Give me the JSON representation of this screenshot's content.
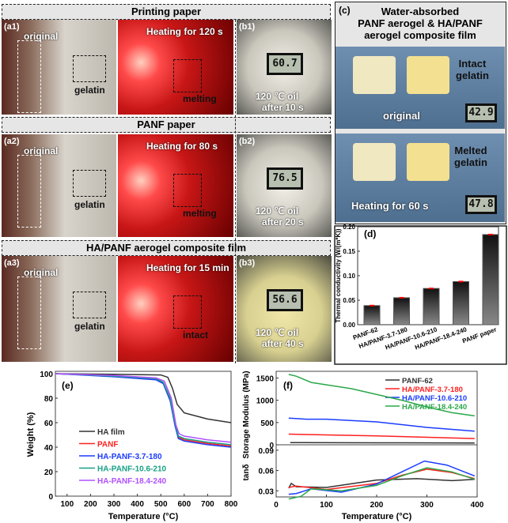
{
  "panels": {
    "row1": {
      "header": "Printing paper",
      "a_tag": "(a1)",
      "orig": "original",
      "gel": "gelatin",
      "heat": "Heating for 120 s",
      "melt": "melting",
      "b_tag": "(b1)",
      "meter": "60.7",
      "oil1": "120 ℃  oil",
      "oil2": "after 10 s"
    },
    "row2": {
      "header": "PANF paper",
      "a_tag": "(a2)",
      "orig": "original",
      "gel": "gelatin",
      "heat": "Heating for 80 s",
      "melt": "melting",
      "b_tag": "(b2)",
      "meter": "76.5",
      "oil1": "120 ℃  oil",
      "oil2": "after 20 s"
    },
    "row3": {
      "header": "HA/PANF aerogel composite film",
      "a_tag": "(a3)",
      "orig": "original",
      "gel": "gelatin",
      "heat": "Heating for 15 min",
      "melt": "intact",
      "b_tag": "(b3)",
      "meter": "56.6",
      "oil1": "120 ℃  oil",
      "oil2": "after 40 s"
    },
    "c": {
      "tag": "(c)",
      "title1": "Water-absorbed",
      "title2": "PANF aerogel & HA/PANF",
      "title3": "aerogel composite film",
      "intact1": "Intact",
      "intact2": "gelatin",
      "original": "original",
      "meter1": "42.9",
      "melted1": "Melted",
      "melted2": "gelatin",
      "heat": "Heating for 60 s",
      "meter2": "47.8"
    }
  },
  "chart_data": [
    {
      "panel": "(d)",
      "type": "bar",
      "categories": [
        "PANF-62",
        "HA/PANF-3.7-180",
        "HA/PANF-10.6-210",
        "HA/PANF-18.4-240",
        "PANF paper"
      ],
      "values": [
        0.039,
        0.055,
        0.074,
        0.088,
        0.184
      ],
      "error": [
        0.001,
        0.001,
        0.001,
        0.001,
        0.001
      ],
      "ylabel": "Thermal conductivity (W/(m*K))",
      "ylim": [
        0,
        0.2
      ],
      "yticks": [
        "0.00",
        "0.05",
        "0.10",
        "0.15",
        "0.20"
      ],
      "bar_color": "#222222",
      "error_color": "#ff0000"
    },
    {
      "panel": "(e)",
      "type": "line",
      "xlabel": "Temperature (°C)",
      "ylabel": "Weight (%)",
      "xlim": [
        50,
        800
      ],
      "ylim": [
        0,
        100
      ],
      "xticks": [
        "100",
        "200",
        "300",
        "400",
        "500",
        "600",
        "700",
        "800"
      ],
      "yticks": [
        "0",
        "20",
        "40",
        "60",
        "80",
        "100"
      ],
      "legend": "center-left",
      "series": [
        {
          "name": "HA film",
          "color": "#333333",
          "points": [
            [
              50,
              100
            ],
            [
              300,
              99.5
            ],
            [
              500,
              99
            ],
            [
              530,
              97
            ],
            [
              550,
              88
            ],
            [
              570,
              75
            ],
            [
              600,
              68
            ],
            [
              700,
              63
            ],
            [
              800,
              60
            ]
          ]
        },
        {
          "name": "PANF",
          "color": "#ff2020",
          "points": [
            [
              50,
              100
            ],
            [
              300,
              98
            ],
            [
              480,
              96
            ],
            [
              510,
              93
            ],
            [
              540,
              80
            ],
            [
              560,
              60
            ],
            [
              575,
              48
            ],
            [
              600,
              46
            ],
            [
              700,
              43
            ],
            [
              800,
              41
            ]
          ]
        },
        {
          "name": "HA-PANF-3.7-180",
          "color": "#1a3cff",
          "points": [
            [
              50,
              100
            ],
            [
              300,
              97.5
            ],
            [
              480,
              95
            ],
            [
              510,
              92
            ],
            [
              540,
              78
            ],
            [
              560,
              58
            ],
            [
              575,
              47
            ],
            [
              600,
              45
            ],
            [
              700,
              42
            ],
            [
              800,
              40
            ]
          ]
        },
        {
          "name": "HA-PANF-10.6-210",
          "color": "#16a085",
          "points": [
            [
              50,
              100
            ],
            [
              300,
              98
            ],
            [
              480,
              96
            ],
            [
              510,
              93
            ],
            [
              540,
              80
            ],
            [
              560,
              60
            ],
            [
              575,
              49
            ],
            [
              600,
              47
            ],
            [
              700,
              44
            ],
            [
              800,
              42
            ]
          ]
        },
        {
          "name": "HA-PANF-18.4-240",
          "color": "#b050ff",
          "points": [
            [
              50,
              100
            ],
            [
              300,
              98.5
            ],
            [
              480,
              96.5
            ],
            [
              515,
              94
            ],
            [
              545,
              80
            ],
            [
              565,
              58
            ],
            [
              578,
              51
            ],
            [
              600,
              49
            ],
            [
              700,
              46
            ],
            [
              800,
              44
            ]
          ]
        }
      ]
    },
    {
      "panel": "(f)",
      "type": "line",
      "xlabel": "Temperature (°C)",
      "xlim": [
        0,
        400
      ],
      "xticks": [
        "0",
        "100",
        "200",
        "300",
        "400"
      ],
      "top": {
        "ylabel": "Storage Modulus (MPa)",
        "ylim": [
          0,
          1650
        ],
        "yticks": [
          "0",
          "500",
          "1000",
          "1500"
        ],
        "legend": "top-right"
      },
      "bottom": {
        "ylabel": "tanδ",
        "ylim": [
          0.021,
          0.098
        ],
        "yticks": [
          "0.03",
          "0.06",
          "0.09"
        ]
      },
      "series": [
        {
          "name": "PANF-62",
          "color": "#333333",
          "modulus": [
            [
              28,
              50
            ],
            [
              200,
              45
            ],
            [
              395,
              40
            ]
          ],
          "tan": [
            [
              25,
              0.034
            ],
            [
              30,
              0.041
            ],
            [
              40,
              0.036
            ],
            [
              100,
              0.035
            ],
            [
              200,
              0.046
            ],
            [
              280,
              0.048
            ],
            [
              350,
              0.045
            ],
            [
              395,
              0.047
            ]
          ]
        },
        {
          "name": "HA/PANF-3.7-180",
          "color": "#ff2020",
          "modulus": [
            [
              25,
              240
            ],
            [
              200,
              200
            ],
            [
              395,
              140
            ]
          ],
          "tan": [
            [
              25,
              0.035
            ],
            [
              40,
              0.037
            ],
            [
              100,
              0.032
            ],
            [
              200,
              0.041
            ],
            [
              250,
              0.053
            ],
            [
              300,
              0.062
            ],
            [
              350,
              0.057
            ],
            [
              395,
              0.048
            ]
          ]
        },
        {
          "name": "HA/PANF-10.6-210",
          "color": "#1a3cff",
          "modulus": [
            [
              25,
              600
            ],
            [
              60,
              575
            ],
            [
              100,
              575
            ],
            [
              200,
              515
            ],
            [
              300,
              390
            ],
            [
              395,
              305
            ]
          ],
          "tan": [
            [
              25,
              0.025
            ],
            [
              40,
              0.026
            ],
            [
              70,
              0.033
            ],
            [
              130,
              0.028
            ],
            [
              200,
              0.04
            ],
            [
              250,
              0.058
            ],
            [
              295,
              0.074
            ],
            [
              340,
              0.068
            ],
            [
              395,
              0.052
            ]
          ]
        },
        {
          "name": "HA/PANF-18.4-240",
          "color": "#2aa84a",
          "modulus": [
            [
              25,
              1580
            ],
            [
              40,
              1540
            ],
            [
              70,
              1400
            ],
            [
              150,
              1260
            ],
            [
              250,
              1000
            ],
            [
              300,
              850
            ],
            [
              350,
              720
            ],
            [
              395,
              650
            ]
          ],
          "tan": [
            [
              25,
              0.018
            ],
            [
              50,
              0.022
            ],
            [
              70,
              0.033
            ],
            [
              130,
              0.03
            ],
            [
              200,
              0.038
            ],
            [
              250,
              0.052
            ],
            [
              300,
              0.064
            ],
            [
              350,
              0.058
            ],
            [
              395,
              0.047
            ]
          ]
        }
      ]
    }
  ]
}
